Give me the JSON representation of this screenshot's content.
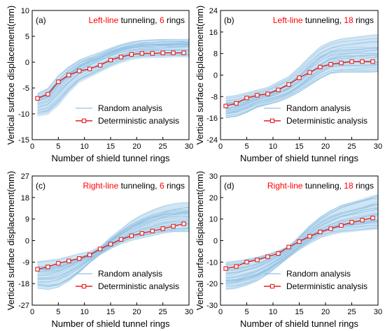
{
  "figure": {
    "x_axis_label": "Number of shield tunnel rings",
    "y_axis_label": "Vertical surface displacement(mm)",
    "legend_random": "Random analysis",
    "legend_deterministic": "Deterministic analysis"
  },
  "colors": {
    "random_band": "#a9d0ea",
    "deterministic_line": "#e02020",
    "title_highlight": "#ff0000",
    "axis": "#000000"
  },
  "chart_data": [
    {
      "type": "line",
      "panel_label": "(a)",
      "title_parts": [
        {
          "text": "Left-line",
          "highlight": true
        },
        {
          "text": " tunneling, ",
          "highlight": false
        },
        {
          "text": "6",
          "highlight": true
        },
        {
          "text": " rings",
          "highlight": false
        }
      ],
      "xlabel": "Number of shield tunnel rings",
      "ylabel": "Vertical surface displacement(mm)",
      "xlim": [
        0,
        30
      ],
      "ylim": [
        -15,
        10
      ],
      "xticks": [
        0,
        5,
        10,
        15,
        20,
        25,
        30
      ],
      "yticks": [
        -15,
        -10,
        -5,
        0,
        5,
        10
      ],
      "legend_position": "lower-center",
      "series": [
        {
          "name": "Deterministic analysis",
          "marker": "square-open",
          "x": [
            1,
            3,
            5,
            7,
            9,
            11,
            13,
            15,
            17,
            19,
            21,
            23,
            25,
            27,
            29
          ],
          "y": [
            -7.0,
            -6.2,
            -3.8,
            -2.5,
            -1.7,
            -1.3,
            -0.6,
            0.4,
            1.0,
            1.5,
            1.7,
            1.7,
            1.8,
            1.8,
            1.8
          ]
        },
        {
          "name": "Random analysis",
          "x": [
            1,
            3,
            5,
            7,
            9,
            11,
            13,
            15,
            17,
            19,
            21,
            23,
            25,
            27,
            29,
            30
          ],
          "lower": [
            -10.5,
            -10.2,
            -8.5,
            -6.0,
            -4.0,
            -3.0,
            -2.0,
            -1.0,
            -0.2,
            0.4,
            0.7,
            0.8,
            0.8,
            0.9,
            0.9,
            0.9
          ],
          "upper": [
            -6.0,
            -5.0,
            -2.5,
            -0.8,
            0.5,
            1.3,
            2.0,
            2.8,
            3.5,
            4.0,
            4.3,
            4.4,
            4.5,
            4.5,
            4.5,
            4.5
          ]
        }
      ]
    },
    {
      "type": "line",
      "panel_label": "(b)",
      "title_parts": [
        {
          "text": "Left-line",
          "highlight": true
        },
        {
          "text": " tunneling, ",
          "highlight": false
        },
        {
          "text": "18",
          "highlight": true
        },
        {
          "text": " rings",
          "highlight": false
        }
      ],
      "xlabel": "Number of shield tunnel rings",
      "ylabel": "Vertical surface displacement(mm)",
      "xlim": [
        0,
        30
      ],
      "ylim": [
        -24,
        24
      ],
      "xticks": [
        0,
        5,
        10,
        15,
        20,
        25,
        30
      ],
      "yticks": [
        -24,
        -16,
        -8,
        0,
        8,
        16,
        24
      ],
      "legend_position": "lower-center",
      "series": [
        {
          "name": "Deterministic analysis",
          "marker": "square-open",
          "x": [
            1,
            3,
            5,
            7,
            9,
            11,
            13,
            15,
            17,
            19,
            21,
            23,
            25,
            27,
            29
          ],
          "y": [
            -11.5,
            -10.5,
            -8.5,
            -7.5,
            -7.0,
            -5.5,
            -3.5,
            -1.0,
            1.0,
            3.0,
            4.0,
            4.5,
            5.0,
            5.0,
            5.0
          ]
        },
        {
          "name": "Random analysis",
          "x": [
            1,
            3,
            5,
            7,
            9,
            11,
            13,
            15,
            17,
            19,
            21,
            23,
            25,
            27,
            29,
            30
          ],
          "lower": [
            -16.0,
            -15.5,
            -14.0,
            -12.0,
            -11.0,
            -10.0,
            -8.5,
            -6.5,
            -4.0,
            -1.5,
            0.5,
            1.0,
            1.0,
            1.0,
            1.0,
            1.0
          ],
          "upper": [
            -8.0,
            -7.5,
            -6.5,
            -5.5,
            -4.5,
            -2.5,
            -0.5,
            3.0,
            7.0,
            10.5,
            12.5,
            13.5,
            14.0,
            14.5,
            15.0,
            15.0
          ]
        }
      ]
    },
    {
      "type": "line",
      "panel_label": "(c)",
      "title_parts": [
        {
          "text": "Right-line",
          "highlight": true
        },
        {
          "text": " tunneling, ",
          "highlight": false
        },
        {
          "text": "6",
          "highlight": true
        },
        {
          "text": " rings",
          "highlight": false
        }
      ],
      "xlabel": "Number of shield tunnel rings",
      "ylabel": "Vertical surface displacement(mm)",
      "xlim": [
        0,
        30
      ],
      "ylim": [
        -27,
        27
      ],
      "xticks": [
        0,
        5,
        10,
        15,
        20,
        25,
        30
      ],
      "yticks": [
        -27,
        -18,
        -9,
        0,
        9,
        18,
        27
      ],
      "legend_position": "lower-center",
      "series": [
        {
          "name": "Deterministic analysis",
          "marker": "square-open",
          "x": [
            1,
            3,
            5,
            7,
            9,
            11,
            13,
            15,
            17,
            19,
            21,
            23,
            25,
            27,
            29
          ],
          "y": [
            -12.0,
            -11.0,
            -9.5,
            -8.5,
            -7.5,
            -6.0,
            -3.5,
            -1.5,
            0.5,
            2.0,
            3.0,
            4.0,
            5.0,
            6.0,
            7.0
          ]
        },
        {
          "name": "Random analysis",
          "x": [
            1,
            3,
            5,
            7,
            9,
            11,
            13,
            15,
            17,
            19,
            21,
            23,
            25,
            27,
            29,
            30
          ],
          "lower": [
            -20.0,
            -20.5,
            -19.5,
            -17.0,
            -13.5,
            -9.5,
            -6.0,
            -3.5,
            -1.5,
            0.0,
            1.0,
            2.0,
            3.0,
            3.5,
            3.5,
            3.5
          ],
          "upper": [
            -8.5,
            -8.0,
            -7.5,
            -6.5,
            -5.5,
            -4.5,
            -2.5,
            1.5,
            5.0,
            8.5,
            11.0,
            13.0,
            14.5,
            15.5,
            16.0,
            16.0
          ]
        }
      ]
    },
    {
      "type": "line",
      "panel_label": "(d)",
      "title_parts": [
        {
          "text": "Right-line",
          "highlight": true
        },
        {
          "text": " tunneling, ",
          "highlight": false
        },
        {
          "text": "18",
          "highlight": true
        },
        {
          "text": " rings",
          "highlight": false
        }
      ],
      "xlabel": "Number of shield tunnel rings",
      "ylabel": "Vertical surface displacement(mm)",
      "xlim": [
        0,
        30
      ],
      "ylim": [
        -30,
        30
      ],
      "xticks": [
        0,
        5,
        10,
        15,
        20,
        25,
        30
      ],
      "yticks": [
        -30,
        -20,
        -10,
        0,
        10,
        20,
        30
      ],
      "legend_position": "lower-center",
      "series": [
        {
          "name": "Deterministic analysis",
          "marker": "square-open",
          "x": [
            1,
            3,
            5,
            7,
            9,
            11,
            13,
            15,
            17,
            19,
            21,
            23,
            25,
            27,
            29
          ],
          "y": [
            -13.0,
            -12.0,
            -10.0,
            -9.0,
            -7.5,
            -6.0,
            -3.0,
            -0.5,
            2.0,
            4.0,
            5.5,
            7.0,
            8.5,
            9.5,
            10.5
          ]
        },
        {
          "name": "Random analysis",
          "x": [
            1,
            3,
            5,
            7,
            9,
            11,
            13,
            15,
            17,
            19,
            21,
            23,
            25,
            27,
            29,
            30
          ],
          "lower": [
            -23.0,
            -22.5,
            -21.0,
            -19.0,
            -16.0,
            -12.0,
            -8.0,
            -4.5,
            -1.5,
            1.0,
            2.5,
            3.5,
            4.0,
            4.5,
            5.0,
            5.0
          ],
          "upper": [
            -10.0,
            -9.5,
            -8.5,
            -7.5,
            -6.0,
            -4.5,
            -2.5,
            2.0,
            7.0,
            11.0,
            14.0,
            16.5,
            18.0,
            19.5,
            21.0,
            21.5
          ]
        }
      ]
    }
  ]
}
